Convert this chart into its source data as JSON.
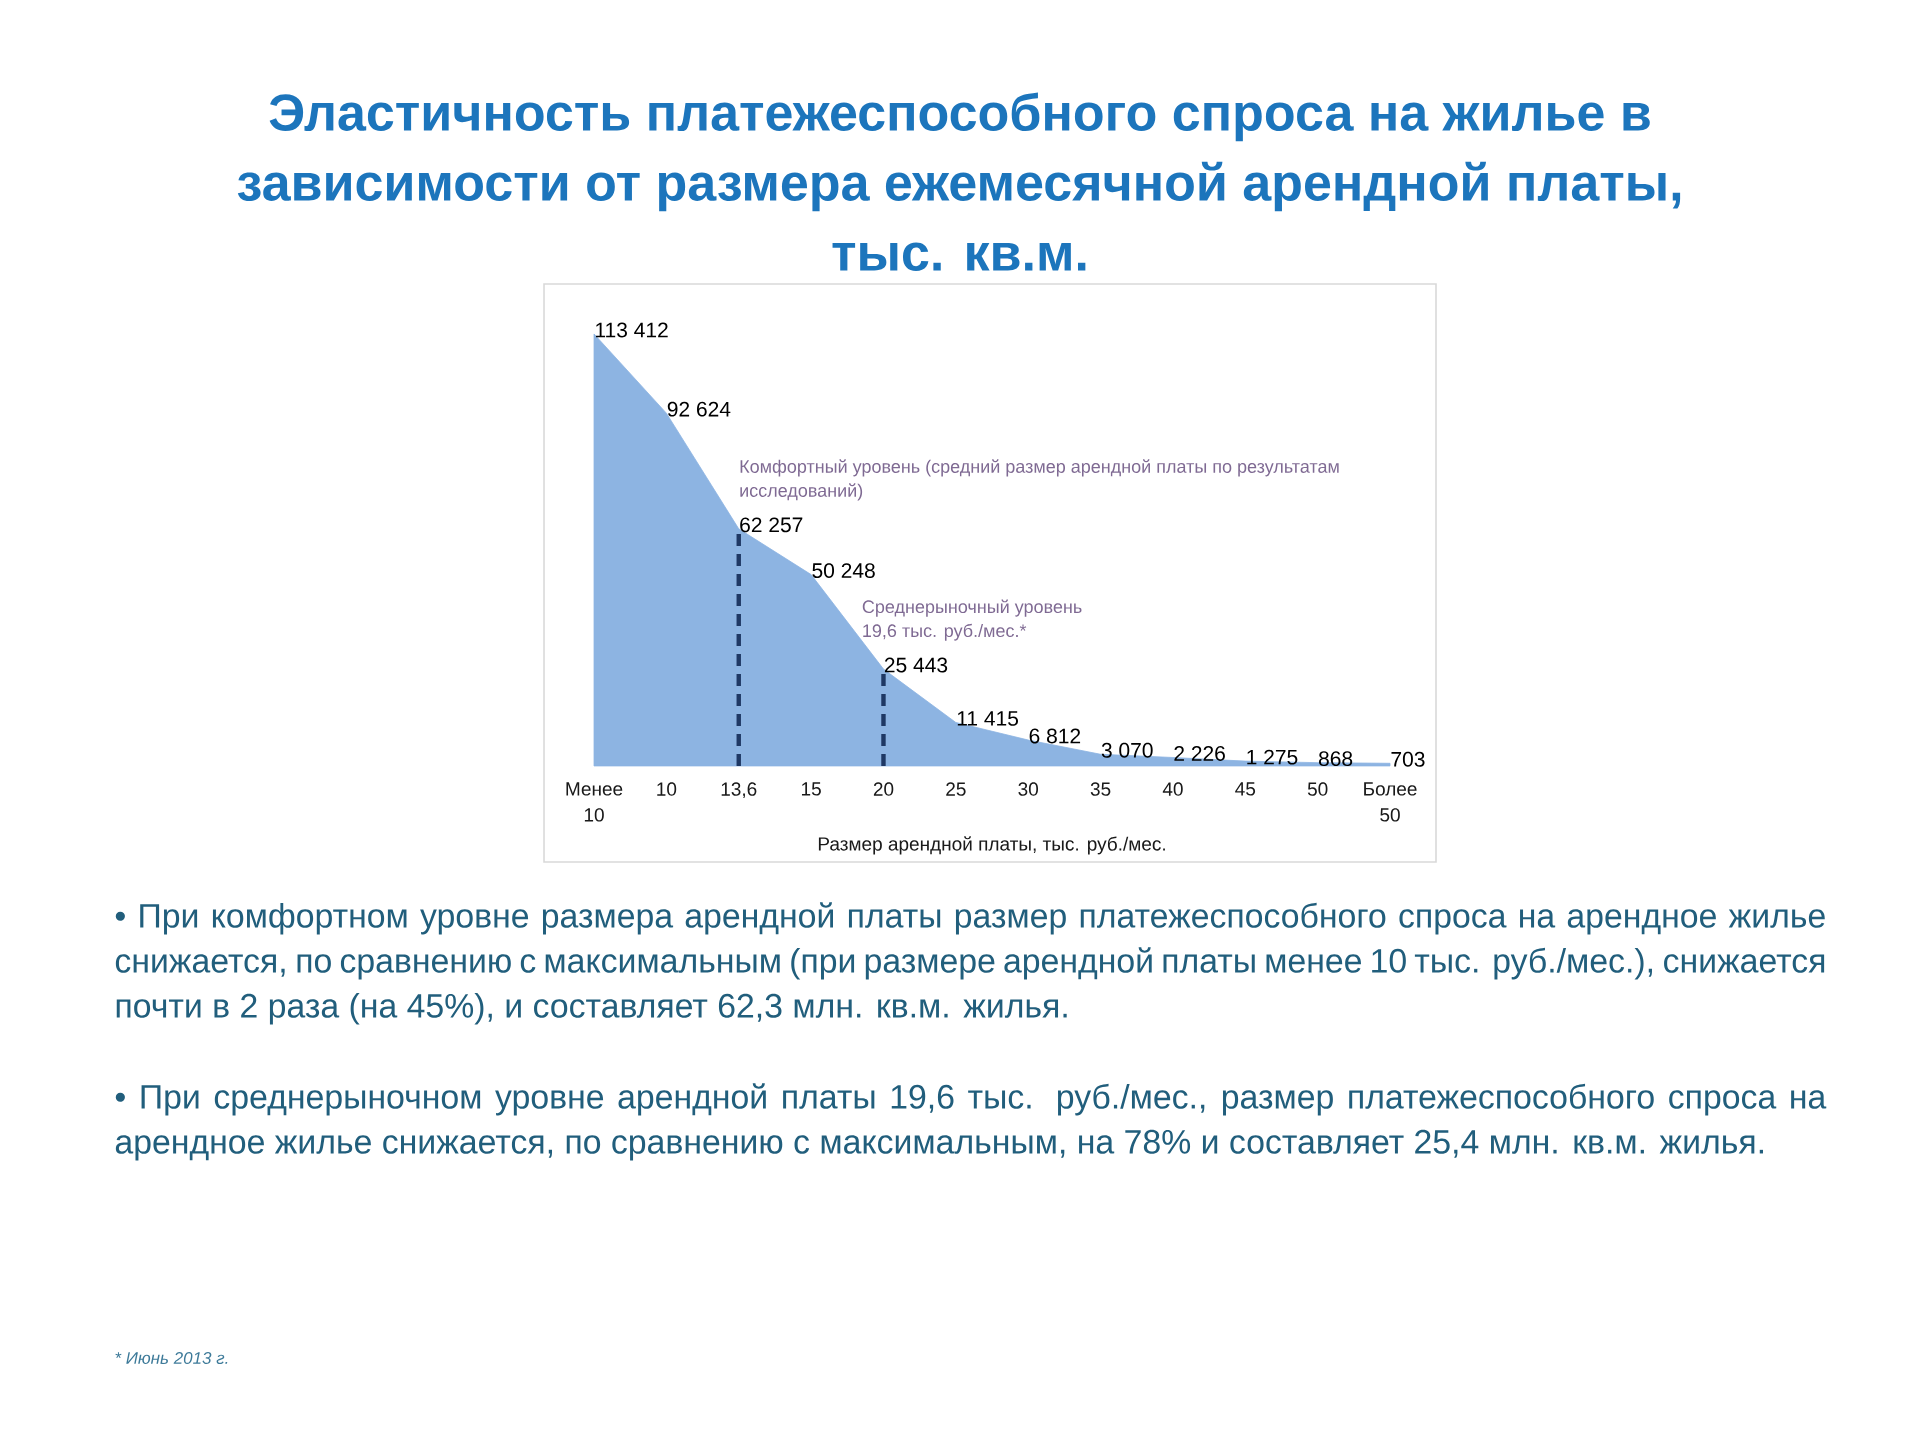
{
  "chart_data": {
    "type": "area",
    "title": "Эластичность платежеспособного спроса на жилье в зависимости от размера ежемесячной арендной платы, тыс. кв.м.",
    "xlabel": "Размер арендной платы, тыс. руб./мес.",
    "categories": [
      "Менее 10",
      "10",
      "13,6",
      "15",
      "20",
      "25",
      "30",
      "35",
      "40",
      "45",
      "50",
      "Более 50"
    ],
    "values": [
      113412,
      92624,
      62257,
      50248,
      25443,
      11415,
      6812,
      3070,
      2226,
      1275,
      868,
      703
    ],
    "value_labels": [
      "113 412",
      "92 624",
      "62 257",
      "50 248",
      "25 443",
      "11 415",
      "6 812",
      "3 070",
      "2 226",
      "1 275",
      "868",
      "703"
    ],
    "color": "#8db4e2",
    "tick_labels": "x",
    "ref_lines": [
      {
        "axis": "x",
        "value": "13,6",
        "label": "Комфортный уровень (средний размер арендной платы по результатам исследований)",
        "color": "#1f3864",
        "line_style": "dashed"
      },
      {
        "axis": "x",
        "value": "20",
        "label": "Среднерыночный уровень 19,6 тыс. руб./мес.*",
        "color": "#1f3864",
        "line_style": "dashed"
      }
    ],
    "annotations": [
      "• При комфортном уровне размера арендной платы размер платежеспособного спроса на арендное жилье снижается, по сравнению с максимальным (при размере арендной платы менее 10 тыс. руб./мес.), снижается почти в 2 раза (на 45%), и составляет 62,3 млн. кв.м. жилья.",
      "• При среднерыночном уровне арендной платы 19,6 тыс. руб./мес., размер платежеспособного спроса на арендное жилье снижается, по сравнению с максимальным, на 78% и составляет 25,4 млн. кв.м. жилья.",
      "* Июнь 2013 г."
    ]
  }
}
